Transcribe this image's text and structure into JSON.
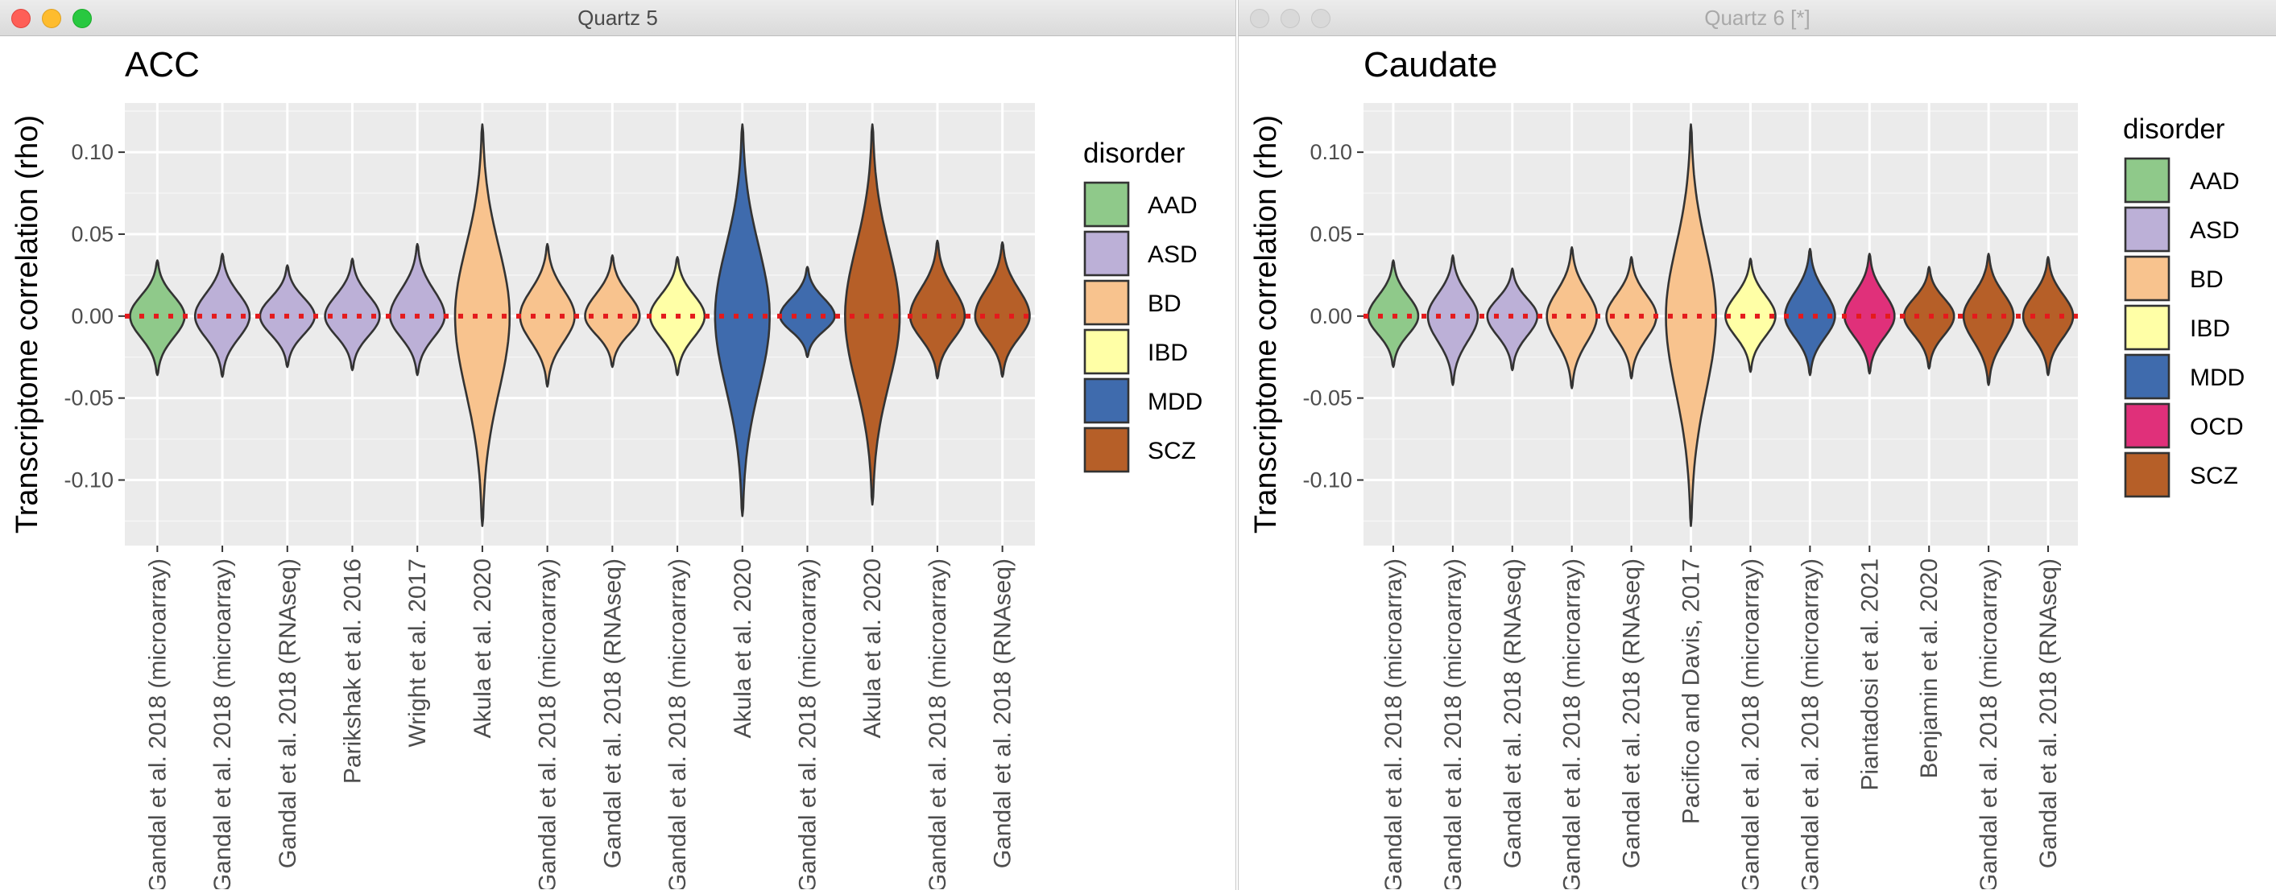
{
  "windows": [
    {
      "id": "left",
      "title": "Quartz 5",
      "active": true,
      "chart_data": {
        "type": "violin",
        "title": "ACC",
        "ylabel": "Transcriptome correlation (rho)",
        "xlabel": "",
        "ylim": [
          -0.14,
          0.13
        ],
        "yticks": [
          0.1,
          0.05,
          0.0,
          -0.05,
          -0.1
        ],
        "ytick_labels": [
          "0.10",
          "0.05",
          "0.00",
          "-0.05",
          "-0.10"
        ],
        "reference_line": {
          "y": 0,
          "style": "dotted",
          "color": "#e41a1c"
        },
        "legend": {
          "title": "disorder",
          "placement": "right",
          "entries": [
            "AAD",
            "ASD",
            "BD",
            "IBD",
            "MDD",
            "SCZ"
          ]
        },
        "colors": {
          "AAD": "#8fc98a",
          "ASD": "#bcb0d7",
          "BD": "#f8c38e",
          "IBD": "#ffffa6",
          "MDD": "#3f6bad",
          "SCZ": "#b65f28"
        },
        "categories": [
          "Gandal et al. 2018 (microarray)",
          "Gandal et al. 2018 (microarray)",
          "Gandal et al. 2018 (RNAseq)",
          "Parikshak et al. 2016",
          "Wright et al. 2017",
          "Akula et al. 2020",
          "Gandal et al. 2018 (microarray)",
          "Gandal et al. 2018 (RNAseq)",
          "Gandal et al. 2018 (microarray)",
          "Akula et al. 2020",
          "Gandal et al. 2018 (microarray)",
          "Akula et al. 2020",
          "Gandal et al. 2018 (microarray)",
          "Gandal et al. 2018 (RNAseq)"
        ],
        "series": [
          {
            "disorder": "AAD",
            "min": -0.036,
            "max": 0.034
          },
          {
            "disorder": "ASD",
            "min": -0.037,
            "max": 0.038
          },
          {
            "disorder": "ASD",
            "min": -0.031,
            "max": 0.031
          },
          {
            "disorder": "ASD",
            "min": -0.033,
            "max": 0.035
          },
          {
            "disorder": "ASD",
            "min": -0.036,
            "max": 0.044
          },
          {
            "disorder": "BD",
            "min": -0.128,
            "max": 0.117
          },
          {
            "disorder": "BD",
            "min": -0.043,
            "max": 0.044
          },
          {
            "disorder": "BD",
            "min": -0.031,
            "max": 0.037
          },
          {
            "disorder": "IBD",
            "min": -0.036,
            "max": 0.036
          },
          {
            "disorder": "MDD",
            "min": -0.122,
            "max": 0.117
          },
          {
            "disorder": "MDD",
            "min": -0.025,
            "max": 0.03
          },
          {
            "disorder": "SCZ",
            "min": -0.115,
            "max": 0.117
          },
          {
            "disorder": "SCZ",
            "min": -0.038,
            "max": 0.046
          },
          {
            "disorder": "SCZ",
            "min": -0.037,
            "max": 0.045
          }
        ]
      }
    },
    {
      "id": "right",
      "title": "Quartz 6 [*]",
      "active": false,
      "chart_data": {
        "type": "violin",
        "title": "Caudate",
        "ylabel": "Transcriptome correlation (rho)",
        "xlabel": "",
        "ylim": [
          -0.14,
          0.13
        ],
        "yticks": [
          0.1,
          0.05,
          0.0,
          -0.05,
          -0.1
        ],
        "ytick_labels": [
          "0.10",
          "0.05",
          "0.00",
          "-0.05",
          "-0.10"
        ],
        "reference_line": {
          "y": 0,
          "style": "dotted",
          "color": "#e41a1c"
        },
        "legend": {
          "title": "disorder",
          "placement": "right",
          "entries": [
            "AAD",
            "ASD",
            "BD",
            "IBD",
            "MDD",
            "OCD",
            "SCZ"
          ]
        },
        "colors": {
          "AAD": "#8fc98a",
          "ASD": "#bcb0d7",
          "BD": "#f8c38e",
          "IBD": "#ffffa6",
          "MDD": "#3f6bad",
          "OCD": "#e0307a",
          "SCZ": "#b65f28"
        },
        "categories": [
          "Gandal et al. 2018 (microarray)",
          "Gandal et al. 2018 (microarray)",
          "Gandal et al. 2018 (RNAseq)",
          "Gandal et al. 2018 (microarray)",
          "Gandal et al. 2018 (RNAseq)",
          "Pacifico and Davis, 2017",
          "Gandal et al. 2018 (microarray)",
          "Gandal et al. 2018 (microarray)",
          "Piantadosi et al. 2021",
          "Benjamin et al. 2020",
          "Gandal et al. 2018 (microarray)",
          "Gandal et al. 2018 (RNAseq)"
        ],
        "series": [
          {
            "disorder": "AAD",
            "min": -0.031,
            "max": 0.034
          },
          {
            "disorder": "ASD",
            "min": -0.042,
            "max": 0.037
          },
          {
            "disorder": "ASD",
            "min": -0.033,
            "max": 0.029
          },
          {
            "disorder": "BD",
            "min": -0.044,
            "max": 0.042
          },
          {
            "disorder": "BD",
            "min": -0.038,
            "max": 0.036
          },
          {
            "disorder": "BD",
            "min": -0.128,
            "max": 0.117
          },
          {
            "disorder": "IBD",
            "min": -0.034,
            "max": 0.035
          },
          {
            "disorder": "MDD",
            "min": -0.036,
            "max": 0.041
          },
          {
            "disorder": "OCD",
            "min": -0.035,
            "max": 0.038
          },
          {
            "disorder": "SCZ",
            "min": -0.032,
            "max": 0.03
          },
          {
            "disorder": "SCZ",
            "min": -0.042,
            "max": 0.038
          },
          {
            "disorder": "SCZ",
            "min": -0.036,
            "max": 0.036
          }
        ]
      }
    }
  ]
}
